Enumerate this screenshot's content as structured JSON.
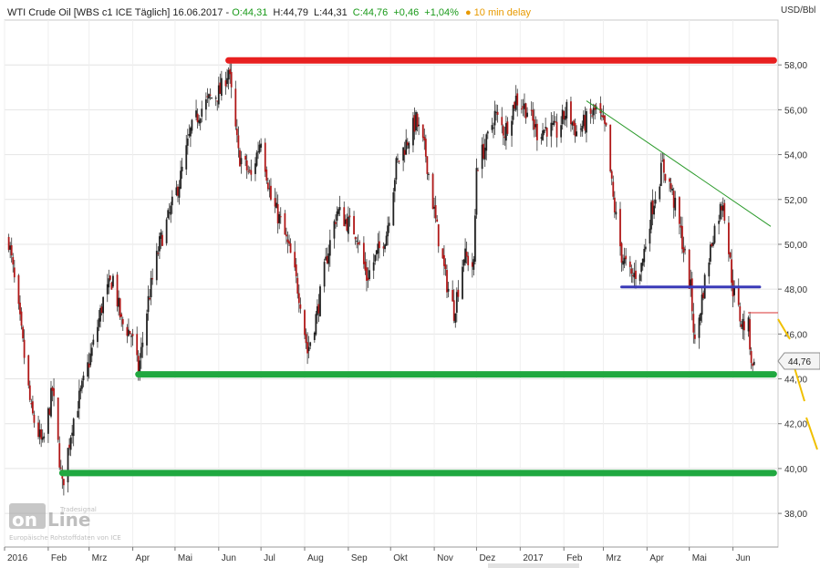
{
  "header": {
    "title": "WTI Crude Oil [WBS c1 ICE Täglich] 16.06.2017",
    "open": "O:44,31",
    "high": "H:44,79",
    "low": "L:44,31",
    "close": "C:44,76",
    "change": "+0,46",
    "change_pct": "+1,04%",
    "delay": "● 10 min delay"
  },
  "colors": {
    "candle_up": "#222222",
    "candle_down": "#b01818",
    "resistance": "#e82020",
    "support": "#20a840",
    "mid_line": "#3a3ab8",
    "trend_line": "#2a9a2a",
    "projection": "#f0c000",
    "positive_text": "#1a9a1a",
    "delay_text": "#e89a00"
  },
  "chart_data": {
    "type": "candlestick",
    "title": "WTI Crude Oil [WBS c1 ICE Täglich] 16.06.2017",
    "unit": "USD/Bbl",
    "ylim": [
      36.5,
      60
    ],
    "y_ticks": [
      "38,00",
      "40,00",
      "42,00",
      "44,00",
      "46,00",
      "48,00",
      "50,00",
      "52,00",
      "54,00",
      "56,00",
      "58,00"
    ],
    "x_ticks": [
      "2016",
      "Feb",
      "Mrz",
      "Apr",
      "Mai",
      "Jun",
      "Jul",
      "Aug",
      "Sep",
      "Okt",
      "Nov",
      "Dez",
      "2017",
      "Feb",
      "Mrz",
      "Apr",
      "Mai",
      "Jun"
    ],
    "grid": true,
    "last_price_label": "44,76",
    "close_series": [
      [
        "2016-01-04",
        50.2
      ],
      [
        "2016-01-12",
        46.5
      ],
      [
        "2016-01-20",
        42.5
      ],
      [
        "2016-01-28",
        41.0
      ],
      [
        "2016-02-04",
        43.5
      ],
      [
        "2016-02-11",
        39.2
      ],
      [
        "2016-02-18",
        42.0
      ],
      [
        "2016-02-26",
        43.8
      ],
      [
        "2016-03-04",
        45.5
      ],
      [
        "2016-03-11",
        47.5
      ],
      [
        "2016-03-18",
        48.5
      ],
      [
        "2016-03-24",
        46.5
      ],
      [
        "2016-03-31",
        46.0
      ],
      [
        "2016-04-05",
        44.3
      ],
      [
        "2016-04-12",
        47.5
      ],
      [
        "2016-04-20",
        50.0
      ],
      [
        "2016-04-28",
        51.5
      ],
      [
        "2016-05-05",
        53.0
      ],
      [
        "2016-05-12",
        55.0
      ],
      [
        "2016-05-19",
        56.0
      ],
      [
        "2016-05-26",
        56.5
      ],
      [
        "2016-06-02",
        56.8
      ],
      [
        "2016-06-08",
        57.8
      ],
      [
        "2016-06-15",
        54.0
      ],
      [
        "2016-06-24",
        53.0
      ],
      [
        "2016-07-01",
        54.8
      ],
      [
        "2016-07-08",
        52.0
      ],
      [
        "2016-07-15",
        51.0
      ],
      [
        "2016-07-22",
        49.5
      ],
      [
        "2016-07-29",
        47.5
      ],
      [
        "2016-08-03",
        45.2
      ],
      [
        "2016-08-10",
        47.0
      ],
      [
        "2016-08-17",
        49.5
      ],
      [
        "2016-08-24",
        51.5
      ],
      [
        "2016-08-31",
        51.0
      ],
      [
        "2016-09-07",
        50.5
      ],
      [
        "2016-09-14",
        48.5
      ],
      [
        "2016-09-21",
        49.5
      ],
      [
        "2016-09-28",
        50.5
      ],
      [
        "2016-10-05",
        53.5
      ],
      [
        "2016-10-12",
        54.5
      ],
      [
        "2016-10-19",
        55.5
      ],
      [
        "2016-10-26",
        54.0
      ],
      [
        "2016-11-02",
        51.0
      ],
      [
        "2016-11-09",
        48.5
      ],
      [
        "2016-11-15",
        47.0
      ],
      [
        "2016-11-22",
        49.5
      ],
      [
        "2016-11-29",
        49.0
      ],
      [
        "2016-12-01",
        53.5
      ],
      [
        "2016-12-08",
        54.5
      ],
      [
        "2016-12-14",
        55.8
      ],
      [
        "2016-12-21",
        55.0
      ],
      [
        "2016-12-29",
        56.5
      ],
      [
        "2017-01-06",
        56.0
      ],
      [
        "2017-01-13",
        55.0
      ],
      [
        "2017-01-20",
        55.2
      ],
      [
        "2017-01-27",
        55.0
      ],
      [
        "2017-02-03",
        56.0
      ],
      [
        "2017-02-10",
        55.0
      ],
      [
        "2017-02-17",
        55.5
      ],
      [
        "2017-02-24",
        56.0
      ],
      [
        "2017-03-03",
        55.0
      ],
      [
        "2017-03-08",
        52.0
      ],
      [
        "2017-03-14",
        49.5
      ],
      [
        "2017-03-21",
        48.5
      ],
      [
        "2017-03-28",
        49.0
      ],
      [
        "2017-04-04",
        51.5
      ],
      [
        "2017-04-12",
        53.5
      ],
      [
        "2017-04-18",
        52.5
      ],
      [
        "2017-04-25",
        50.5
      ],
      [
        "2017-05-02",
        48.0
      ],
      [
        "2017-05-05",
        45.5
      ],
      [
        "2017-05-11",
        48.0
      ],
      [
        "2017-05-18",
        50.5
      ],
      [
        "2017-05-25",
        52.0
      ],
      [
        "2017-06-01",
        48.0
      ],
      [
        "2017-06-07",
        46.5
      ],
      [
        "2017-06-12",
        46.3
      ],
      [
        "2017-06-15",
        44.3
      ],
      [
        "2017-06-16",
        44.76
      ]
    ],
    "annotations": [
      {
        "type": "horizontal",
        "name": "resistance",
        "color": "resistance",
        "y": 58.2,
        "x_from": "2016-06-08",
        "x_to": "2017-06-30"
      },
      {
        "type": "horizontal",
        "name": "support-upper",
        "color": "support",
        "y": 44.2,
        "x_from": "2016-04-05",
        "x_to": "2017-06-30"
      },
      {
        "type": "horizontal",
        "name": "support-lower",
        "color": "support",
        "y": 39.8,
        "x_from": "2016-02-11",
        "x_to": "2017-06-30"
      },
      {
        "type": "horizontal",
        "name": "mid-line",
        "color": "mid_line",
        "y": 48.1,
        "x_from": "2017-03-14",
        "x_to": "2017-06-20"
      },
      {
        "type": "segment",
        "name": "downtrend-line",
        "color": "trend_line",
        "x1": "2017-02-17",
        "y1": 56.4,
        "x2": "2017-06-30",
        "y2": 50.8
      }
    ]
  }
}
